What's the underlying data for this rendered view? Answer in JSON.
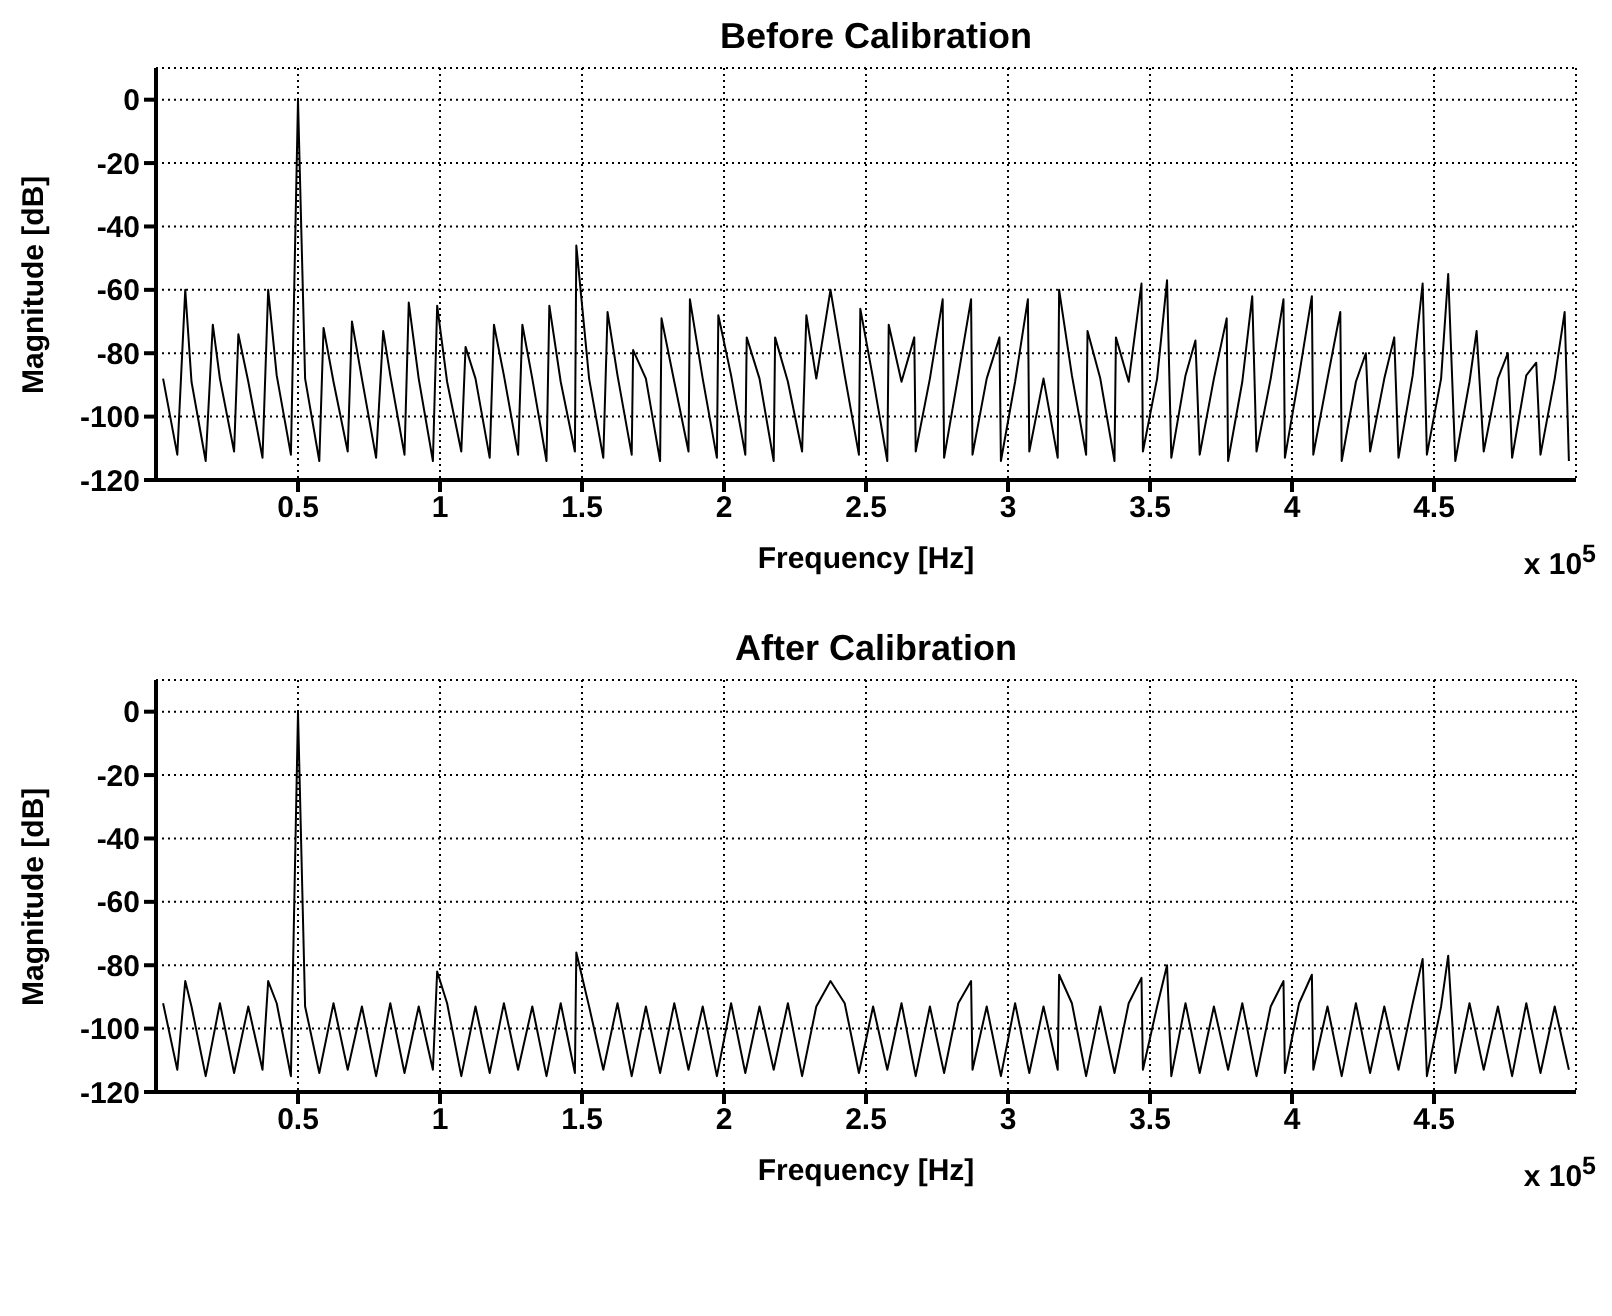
{
  "chart_data": [
    {
      "type": "line",
      "title": "Before Calibration",
      "xlabel": "Frequency [Hz]",
      "ylabel": "Magnitude [dB]",
      "xlim": [
        0,
        5
      ],
      "ylim": [
        -120,
        10
      ],
      "xticks": [
        0.5,
        1,
        1.5,
        2,
        2.5,
        3,
        3.5,
        4,
        4.5
      ],
      "yticks": [
        -120,
        -100,
        -80,
        -60,
        -40,
        -20,
        0
      ],
      "grid": true,
      "annotations": [
        "x 10$^{5}$"
      ],
      "series": [
        {
          "color": "#000000",
          "x": [
            0.025,
            0.075,
            0.103,
            0.125,
            0.175,
            0.2,
            0.225,
            0.275,
            0.29,
            0.325,
            0.375,
            0.395,
            0.425,
            0.475,
            0.5,
            0.525,
            0.575,
            0.59,
            0.625,
            0.675,
            0.69,
            0.725,
            0.775,
            0.8,
            0.825,
            0.875,
            0.89,
            0.925,
            0.975,
            0.99,
            1.025,
            1.075,
            1.09,
            1.125,
            1.175,
            1.19,
            1.225,
            1.275,
            1.29,
            1.325,
            1.375,
            1.385,
            1.425,
            1.475,
            1.48,
            1.525,
            1.575,
            1.59,
            1.625,
            1.675,
            1.68,
            1.725,
            1.775,
            1.78,
            1.825,
            1.875,
            1.88,
            1.925,
            1.975,
            1.98,
            2.025,
            2.075,
            2.08,
            2.125,
            2.175,
            2.18,
            2.225,
            2.275,
            2.29,
            2.325,
            2.375,
            2.425,
            2.475,
            2.48,
            2.525,
            2.575,
            2.58,
            2.625,
            2.67,
            2.675,
            2.725,
            2.77,
            2.775,
            2.825,
            2.87,
            2.875,
            2.925,
            2.97,
            2.975,
            3.025,
            3.07,
            3.075,
            3.125,
            3.175,
            3.18,
            3.225,
            3.275,
            3.28,
            3.325,
            3.375,
            3.38,
            3.425,
            3.47,
            3.475,
            3.525,
            3.56,
            3.575,
            3.625,
            3.66,
            3.675,
            3.725,
            3.77,
            3.775,
            3.825,
            3.86,
            3.875,
            3.925,
            3.97,
            3.975,
            4.025,
            4.07,
            4.075,
            4.125,
            4.17,
            4.175,
            4.225,
            4.26,
            4.275,
            4.325,
            4.36,
            4.375,
            4.425,
            4.46,
            4.475,
            4.525,
            4.55,
            4.575,
            4.625,
            4.65,
            4.675,
            4.725,
            4.76,
            4.775,
            4.825,
            4.86,
            4.875,
            4.925,
            4.96,
            4.975
          ],
          "values": [
            -88,
            -112,
            -60,
            -89,
            -114,
            -71,
            -88,
            -111,
            -74,
            -89,
            -113,
            -60,
            -87,
            -112,
            0,
            -88,
            -114,
            -72,
            -89,
            -111,
            -70,
            -88,
            -113,
            -73,
            -87,
            -112,
            -64,
            -88,
            -114,
            -65,
            -89,
            -111,
            -78,
            -88,
            -113,
            -71,
            -87,
            -112,
            -71,
            -88,
            -114,
            -65,
            -89,
            -111,
            -46,
            -88,
            -113,
            -67,
            -87,
            -112,
            -79,
            -88,
            -114,
            -69,
            -89,
            -111,
            -63,
            -88,
            -113,
            -68,
            -87,
            -112,
            -75,
            -88,
            -114,
            -75,
            -89,
            -111,
            -68,
            -88,
            -60,
            -87,
            -112,
            -66,
            -88,
            -114,
            -71,
            -89,
            -75,
            -111,
            -88,
            -63,
            -113,
            -87,
            -63,
            -112,
            -88,
            -75,
            -114,
            -89,
            -63,
            -111,
            -88,
            -113,
            -60,
            -87,
            -112,
            -73,
            -88,
            -114,
            -75,
            -89,
            -58,
            -111,
            -88,
            -57,
            -113,
            -87,
            -76,
            -112,
            -88,
            -69,
            -114,
            -89,
            -62,
            -111,
            -88,
            -63,
            -113,
            -87,
            -62,
            -112,
            -88,
            -67,
            -114,
            -89,
            -80,
            -111,
            -88,
            -75,
            -113,
            -87,
            -58,
            -112,
            -88,
            -55,
            -114,
            -89,
            -73,
            -111,
            -88,
            -80,
            -113,
            -87,
            -83,
            -112,
            -88,
            -67,
            -114
          ]
        }
      ]
    },
    {
      "type": "line",
      "title": "After Calibration",
      "xlabel": "Frequency [Hz]",
      "ylabel": "Magnitude [dB]",
      "xlim": [
        0,
        5
      ],
      "ylim": [
        -120,
        10
      ],
      "xticks": [
        0.5,
        1,
        1.5,
        2,
        2.5,
        3,
        3.5,
        4,
        4.5
      ],
      "yticks": [
        -120,
        -100,
        -80,
        -60,
        -40,
        -20,
        0
      ],
      "grid": true,
      "annotations": [
        "x 10$^{5}$"
      ],
      "series": [
        {
          "color": "#000000",
          "x": [
            0.025,
            0.075,
            0.103,
            0.125,
            0.175,
            0.225,
            0.275,
            0.325,
            0.375,
            0.395,
            0.425,
            0.475,
            0.5,
            0.525,
            0.575,
            0.625,
            0.675,
            0.725,
            0.775,
            0.825,
            0.875,
            0.925,
            0.975,
            0.99,
            1.025,
            1.075,
            1.125,
            1.175,
            1.225,
            1.275,
            1.325,
            1.375,
            1.425,
            1.475,
            1.48,
            1.525,
            1.575,
            1.625,
            1.675,
            1.725,
            1.775,
            1.825,
            1.875,
            1.925,
            1.975,
            2.025,
            2.075,
            2.125,
            2.175,
            2.225,
            2.275,
            2.325,
            2.375,
            2.425,
            2.475,
            2.525,
            2.575,
            2.625,
            2.675,
            2.725,
            2.775,
            2.825,
            2.87,
            2.875,
            2.925,
            2.975,
            3.025,
            3.075,
            3.125,
            3.175,
            3.18,
            3.225,
            3.275,
            3.325,
            3.375,
            3.425,
            3.47,
            3.475,
            3.525,
            3.56,
            3.575,
            3.625,
            3.675,
            3.725,
            3.775,
            3.825,
            3.875,
            3.925,
            3.97,
            3.975,
            4.025,
            4.07,
            4.075,
            4.125,
            4.175,
            4.225,
            4.275,
            4.325,
            4.375,
            4.425,
            4.46,
            4.475,
            4.525,
            4.55,
            4.575,
            4.625,
            4.675,
            4.725,
            4.775,
            4.825,
            4.875,
            4.925,
            4.975
          ],
          "values": [
            -92,
            -113,
            -85,
            -93,
            -115,
            -92,
            -114,
            -93,
            -113,
            -85,
            -92,
            -115,
            0,
            -93,
            -114,
            -92,
            -113,
            -93,
            -115,
            -92,
            -114,
            -93,
            -113,
            -82,
            -92,
            -115,
            -93,
            -114,
            -92,
            -113,
            -93,
            -115,
            -92,
            -114,
            -76,
            -93,
            -113,
            -92,
            -115,
            -93,
            -114,
            -92,
            -113,
            -93,
            -115,
            -92,
            -114,
            -93,
            -113,
            -92,
            -115,
            -93,
            -85,
            -92,
            -114,
            -93,
            -113,
            -92,
            -115,
            -93,
            -114,
            -92,
            -85,
            -113,
            -93,
            -115,
            -92,
            -114,
            -93,
            -113,
            -83,
            -92,
            -115,
            -93,
            -114,
            -92,
            -84,
            -113,
            -93,
            -80,
            -115,
            -92,
            -114,
            -93,
            -113,
            -92,
            -115,
            -93,
            -85,
            -114,
            -92,
            -83,
            -113,
            -93,
            -115,
            -92,
            -114,
            -93,
            -113,
            -92,
            -78,
            -115,
            -93,
            -77,
            -114,
            -92,
            -113,
            -93,
            -115,
            -92,
            -114,
            -93,
            -113
          ]
        }
      ]
    }
  ]
}
